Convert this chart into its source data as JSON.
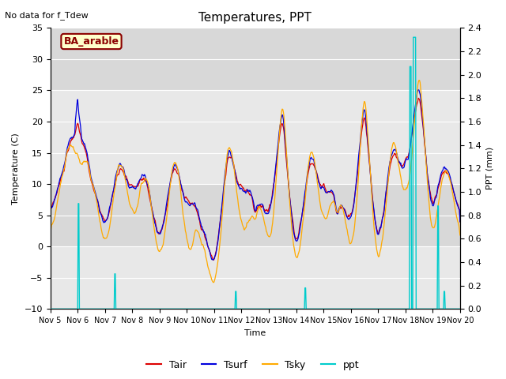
{
  "title": "Temperatures, PPT",
  "subtitle": "No data for f_Tdew",
  "legend_label": "BA_arable",
  "xlabel": "Time",
  "ylabel_left": "Temperature (C)",
  "ylabel_right": "PPT (mm)",
  "ylim_left": [
    -10,
    35
  ],
  "ylim_right": [
    0.0,
    2.4
  ],
  "yticks_left": [
    -10,
    -5,
    0,
    5,
    10,
    15,
    20,
    25,
    30,
    35
  ],
  "yticks_right": [
    0.0,
    0.2,
    0.4,
    0.6,
    0.8,
    1.0,
    1.2,
    1.4,
    1.6,
    1.8,
    2.0,
    2.2,
    2.4
  ],
  "xtick_labels": [
    "Nov 5",
    "Nov 6",
    "Nov 7",
    "Nov 8",
    "Nov 9",
    "Nov 10",
    "Nov 11",
    "Nov 12",
    "Nov 13",
    "Nov 14",
    "Nov 15",
    "Nov 16",
    "Nov 17",
    "Nov 18",
    "Nov 19",
    "Nov 20"
  ],
  "colors": {
    "Tair": "#dd0000",
    "Tsurf": "#0000dd",
    "Tsky": "#ffaa00",
    "ppt": "#00cccc",
    "bg_dark": "#d8d8d8",
    "bg_light": "#eeeeee"
  },
  "bg_bands": [
    [
      25,
      35,
      "#d8d8d8"
    ],
    [
      10,
      25,
      "#e8e8e8"
    ],
    [
      0,
      10,
      "#d8d8d8"
    ],
    [
      -10,
      0,
      "#e8e8e8"
    ]
  ],
  "n_points": 720,
  "background_color": "#ffffff"
}
